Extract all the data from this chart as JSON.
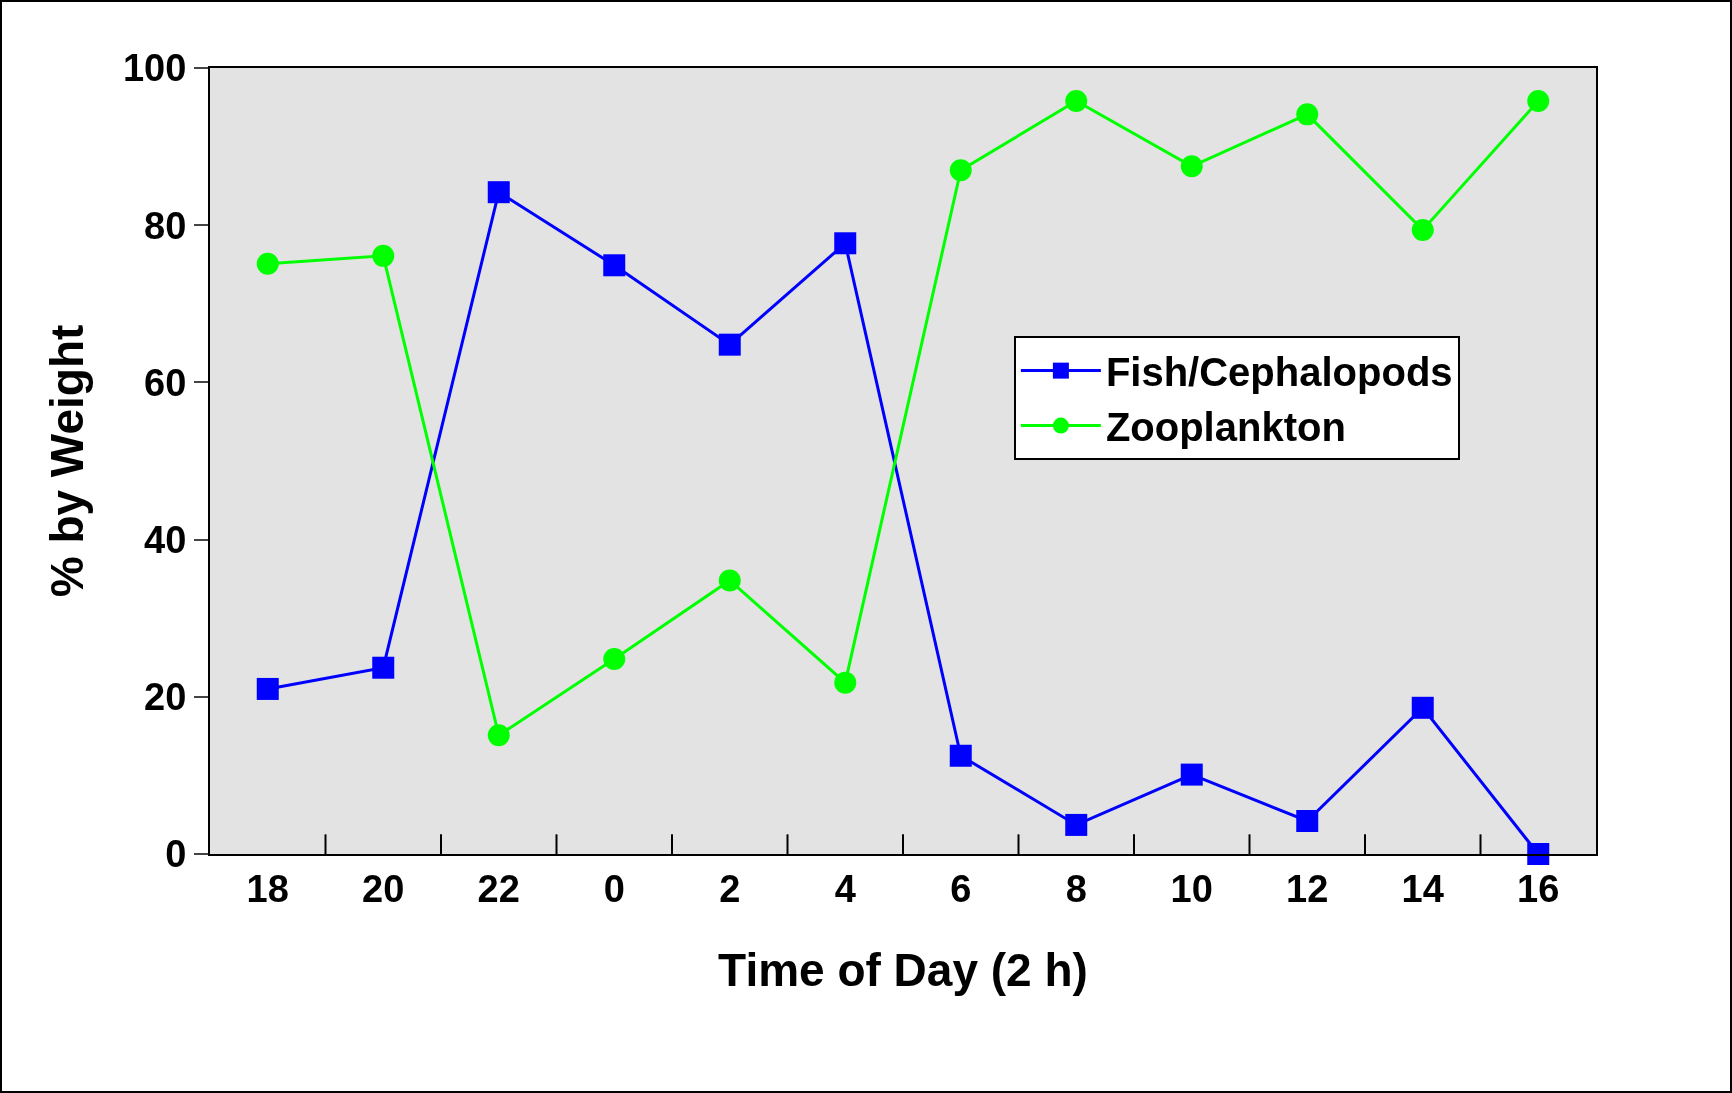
{
  "chart_data": {
    "type": "line",
    "xlabel": "Time of Day (2 h)",
    "ylabel": "% by Weight",
    "categories": [
      "18",
      "20",
      "22",
      "0",
      "2",
      "4",
      "6",
      "8",
      "10",
      "12",
      "14",
      "16"
    ],
    "series": [
      {
        "name": "Fish/Cephalopods",
        "color": "#0000ff",
        "marker": "square",
        "values": [
          21.0,
          23.7,
          84.2,
          74.9,
          64.8,
          77.7,
          12.5,
          3.7,
          10.1,
          4.2,
          18.6,
          0
        ]
      },
      {
        "name": "Zooplankton",
        "color": "#00ff00",
        "marker": "circle",
        "values": [
          75.1,
          76.1,
          15.1,
          24.8,
          34.8,
          21.8,
          87.0,
          95.8,
          87.5,
          94.1,
          79.4,
          95.8
        ]
      }
    ],
    "ylim": [
      0,
      100
    ],
    "yticks": [
      0,
      20,
      40,
      60,
      80,
      100
    ],
    "grid": false,
    "legend": "right",
    "line_style": "solid"
  }
}
